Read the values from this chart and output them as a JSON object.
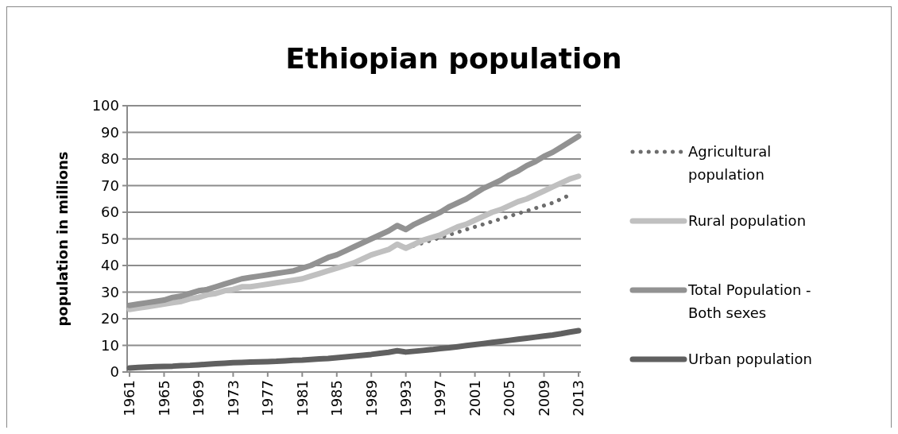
{
  "chart_data": {
    "type": "line",
    "title": "Ethiopian population",
    "ylabel": "population in millions",
    "categories": [
      "1961",
      null,
      null,
      null,
      "1965",
      null,
      null,
      null,
      "1969",
      null,
      null,
      null,
      "1973",
      null,
      null,
      null,
      "1977",
      null,
      null,
      null,
      "1981",
      null,
      null,
      null,
      "1985",
      null,
      null,
      null,
      "1989",
      null,
      null,
      null,
      "1993",
      null,
      null,
      null,
      "1997",
      null,
      null,
      null,
      "2001",
      null,
      null,
      null,
      "2005",
      null,
      null,
      null,
      "2009",
      null,
      null,
      null,
      "2013"
    ],
    "ylim": [
      0,
      100
    ],
    "yticks": [
      0,
      10,
      20,
      30,
      40,
      50,
      60,
      70,
      80,
      90,
      100
    ],
    "grid": "y",
    "legend": "right",
    "marker": "none",
    "series": [
      {
        "name": "Agricultural population",
        "color": "#6d6d6d",
        "line_style": "dotted",
        "values": [
          null,
          null,
          null,
          null,
          null,
          null,
          null,
          null,
          null,
          null,
          null,
          null,
          null,
          null,
          null,
          null,
          null,
          null,
          null,
          null,
          null,
          null,
          null,
          null,
          null,
          null,
          null,
          null,
          null,
          null,
          null,
          null,
          46.5,
          47.5,
          48.5,
          49.5,
          50.5,
          51.5,
          52.5,
          53.5,
          54.5,
          55.5,
          56.5,
          57.5,
          58.5,
          59.5,
          60.5,
          61.5,
          62.5,
          63.5,
          65,
          66.5,
          null
        ]
      },
      {
        "name": "Rural population",
        "color": "#c0c0c0",
        "line_style": "solid",
        "values": [
          23.5,
          24,
          24.5,
          25,
          25.5,
          26,
          26.5,
          27.5,
          28,
          29,
          29.5,
          30.5,
          31,
          32,
          32,
          32.5,
          33,
          33.5,
          34,
          34.5,
          35,
          36,
          37,
          38,
          39,
          40,
          41,
          42.5,
          44,
          45,
          46,
          48,
          46.5,
          48,
          49.5,
          50.5,
          51.5,
          53,
          54.5,
          55.5,
          57,
          58.5,
          60,
          61,
          62.5,
          64,
          65,
          66.5,
          68,
          69.5,
          71,
          72.5,
          73.5
        ]
      },
      {
        "name": "Total Population - Both sexes",
        "color": "#929292",
        "line_style": "solid",
        "values": [
          25,
          25.5,
          26,
          26.5,
          27,
          28,
          28.5,
          29.5,
          30.5,
          31,
          32,
          33,
          34,
          35,
          35.5,
          36,
          36.5,
          37,
          37.5,
          38,
          39,
          40,
          41.5,
          43,
          44,
          45.5,
          47,
          48.5,
          50,
          51.5,
          53,
          55,
          53.5,
          55.5,
          57,
          58.5,
          60,
          62,
          63.5,
          65,
          67,
          69,
          70.5,
          72,
          74,
          75.5,
          77.5,
          79,
          81,
          82.5,
          84.5,
          86.5,
          88.5
        ]
      },
      {
        "name": "Urban population",
        "color": "#606060",
        "line_style": "solid",
        "values": [
          1.5,
          1.7,
          1.9,
          2,
          2.1,
          2.2,
          2.4,
          2.5,
          2.7,
          2.9,
          3.1,
          3.3,
          3.5,
          3.6,
          3.7,
          3.8,
          3.9,
          4,
          4.2,
          4.4,
          4.5,
          4.7,
          4.9,
          5.1,
          5.4,
          5.7,
          6,
          6.3,
          6.6,
          7,
          7.4,
          8,
          7.5,
          7.8,
          8.1,
          8.4,
          8.8,
          9.1,
          9.5,
          9.9,
          10.3,
          10.7,
          11.1,
          11.5,
          11.9,
          12.3,
          12.7,
          13.1,
          13.5,
          13.9,
          14.4,
          15,
          15.5
        ]
      }
    ]
  }
}
